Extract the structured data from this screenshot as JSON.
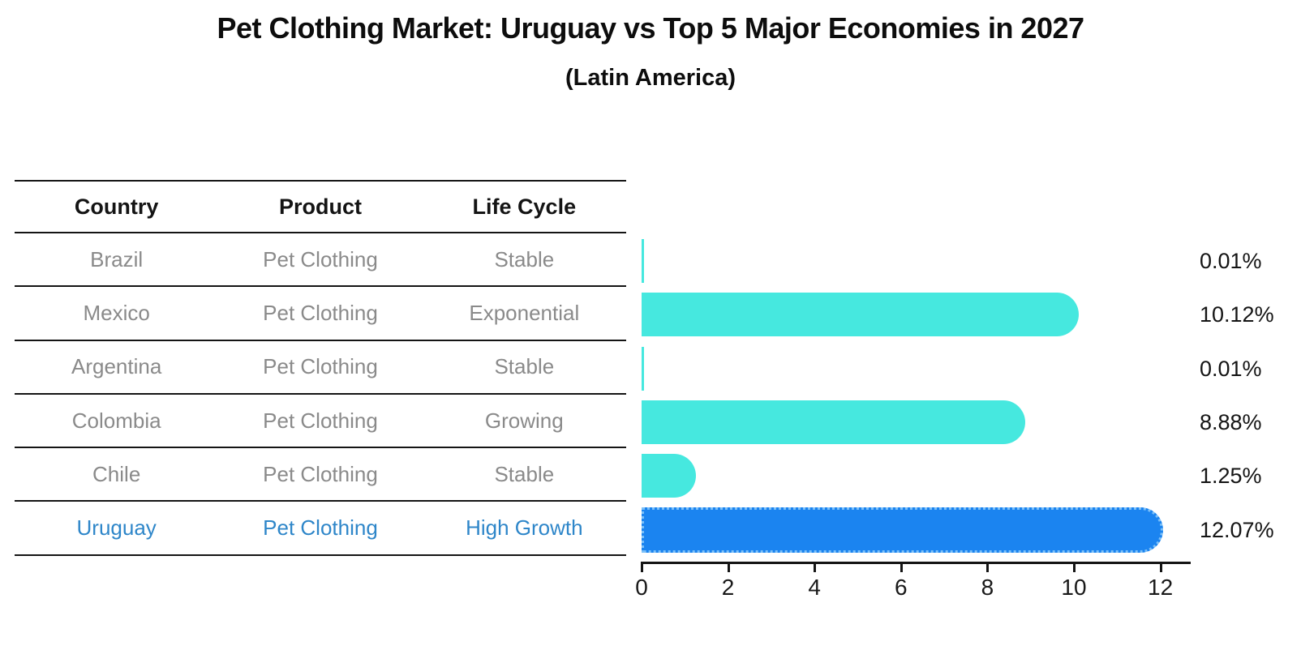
{
  "title": "Pet Clothing Market: Uruguay vs Top 5 Major Economies in 2027",
  "subtitle": "(Latin America)",
  "table": {
    "headers": [
      "Country",
      "Product",
      "Life Cycle"
    ],
    "rows": [
      {
        "country": "Brazil",
        "product": "Pet Clothing",
        "life_cycle": "Stable",
        "highlight": false
      },
      {
        "country": "Mexico",
        "product": "Pet Clothing",
        "life_cycle": "Exponential",
        "highlight": false
      },
      {
        "country": "Argentina",
        "product": "Pet Clothing",
        "life_cycle": "Stable",
        "highlight": false
      },
      {
        "country": "Colombia",
        "product": "Pet Clothing",
        "life_cycle": "Growing",
        "highlight": false
      },
      {
        "country": "Chile",
        "product": "Pet Clothing",
        "life_cycle": "Stable",
        "highlight": false
      },
      {
        "country": "Uruguay",
        "product": "Pet Clothing",
        "life_cycle": "High Growth",
        "highlight": true
      }
    ]
  },
  "chart_data": {
    "type": "bar",
    "orientation": "horizontal",
    "title": "Pet Clothing Market: Uruguay vs Top 5 Major Economies in 2027",
    "subtitle": "(Latin America)",
    "categories": [
      "Brazil",
      "Mexico",
      "Argentina",
      "Colombia",
      "Chile",
      "Uruguay"
    ],
    "values": [
      0.01,
      10.12,
      0.01,
      8.88,
      1.25,
      12.07
    ],
    "value_labels": [
      "0.01%",
      "10.12%",
      "0.01%",
      "8.88%",
      "1.25%",
      "12.07%"
    ],
    "highlight_index": 5,
    "xlabel": "",
    "ylabel": "",
    "xlim": [
      0,
      12.7
    ],
    "x_ticks": [
      0,
      2,
      4,
      6,
      8,
      10,
      12
    ],
    "grid": false,
    "legend_position": "none"
  },
  "colors": {
    "bar_fill": "#46e8df",
    "highlight_fill": "#1b84f0",
    "highlight_edge": "#7cc0f8",
    "highlight_text": "#2e86c9",
    "table_text": "#8a8a8a",
    "header_text": "#141414",
    "axis": "#141414"
  }
}
